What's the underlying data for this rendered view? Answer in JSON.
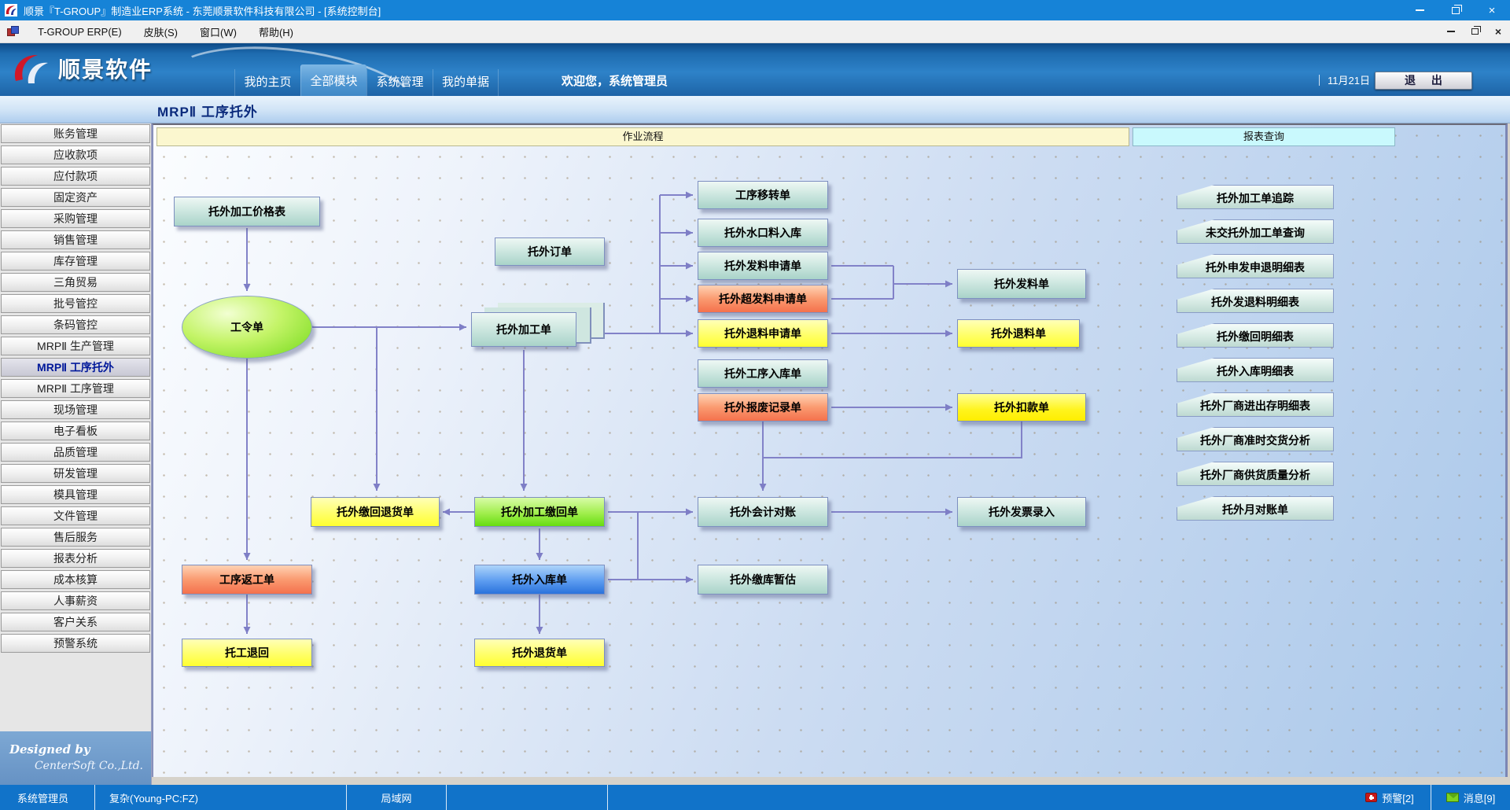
{
  "window": {
    "title": "顺景『T-GROUP』制造业ERP系统 - 东莞顺景软件科技有限公司 - [系统控制台]",
    "close_glyph": "×"
  },
  "menubar": {
    "items": [
      "T-GROUP ERP(E)",
      "皮肤(S)",
      "窗口(W)",
      "帮助(H)"
    ]
  },
  "header": {
    "logo_text": "顺景软件",
    "tabs": [
      {
        "label": "我的主页",
        "active": false
      },
      {
        "label": "全部模块",
        "active": true
      },
      {
        "label": "系统管理",
        "active": false
      },
      {
        "label": "我的单据",
        "active": false
      }
    ],
    "welcome": "欢迎您，系统管理员",
    "date": "11月21日",
    "logout_label": "退 出"
  },
  "page": {
    "title": "MRPⅡ 工序托外"
  },
  "sidebar": {
    "items": [
      {
        "label": "账务管理",
        "selected": false
      },
      {
        "label": "应收款项",
        "selected": false
      },
      {
        "label": "应付款项",
        "selected": false
      },
      {
        "label": "固定资产",
        "selected": false
      },
      {
        "label": "采购管理",
        "selected": false
      },
      {
        "label": "销售管理",
        "selected": false
      },
      {
        "label": "库存管理",
        "selected": false
      },
      {
        "label": "三角贸易",
        "selected": false
      },
      {
        "label": "批号管控",
        "selected": false
      },
      {
        "label": "条码管控",
        "selected": false
      },
      {
        "label": "MRPⅡ 生产管理",
        "selected": false
      },
      {
        "label": "MRPⅡ 工序托外",
        "selected": true
      },
      {
        "label": "MRPⅡ 工序管理",
        "selected": false
      },
      {
        "label": "现场管理",
        "selected": false
      },
      {
        "label": "电子看板",
        "selected": false
      },
      {
        "label": "品质管理",
        "selected": false
      },
      {
        "label": "研发管理",
        "selected": false
      },
      {
        "label": "模具管理",
        "selected": false
      },
      {
        "label": "文件管理",
        "selected": false
      },
      {
        "label": "售后服务",
        "selected": false
      },
      {
        "label": "报表分析",
        "selected": false
      },
      {
        "label": "成本核算",
        "selected": false
      },
      {
        "label": "人事薪资",
        "selected": false
      },
      {
        "label": "客户关系",
        "selected": false
      },
      {
        "label": "预警系统",
        "selected": false
      }
    ],
    "footer_line1": "Designed by",
    "footer_line2": "CenterSoft Co.,Ltd."
  },
  "flow": {
    "section_process": "作业流程",
    "section_reports": "报表查询",
    "nodes": [
      {
        "id": "jiagebiao",
        "label": "托外加工价格表",
        "color": "teal"
      },
      {
        "id": "gonglingdan",
        "label": "工令单",
        "color": "green"
      },
      {
        "id": "dingdan",
        "label": "托外订单",
        "color": "teal"
      },
      {
        "id": "jiagongdan",
        "label": "托外加工单",
        "color": "teal"
      },
      {
        "id": "yizhuandan",
        "label": "工序移转单",
        "color": "teal"
      },
      {
        "id": "shuikou",
        "label": "托外水口料入库",
        "color": "teal"
      },
      {
        "id": "faliao_sq",
        "label": "托外发料申请单",
        "color": "teal"
      },
      {
        "id": "chaofa_sq",
        "label": "托外超发料申请单",
        "color": "salmon"
      },
      {
        "id": "tuiliao_sq",
        "label": "托外退料申请单",
        "color": "yellow"
      },
      {
        "id": "gx_rukudan",
        "label": "托外工序入库单",
        "color": "teal"
      },
      {
        "id": "baofei",
        "label": "托外报废记录单",
        "color": "salmon"
      },
      {
        "id": "faliaodan",
        "label": "托外发料单",
        "color": "teal"
      },
      {
        "id": "tuiliaodan",
        "label": "托外退料单",
        "color": "yellow"
      },
      {
        "id": "koukuandan",
        "label": "托外扣款单",
        "color": "yellow-bright"
      },
      {
        "id": "jiaohui_tuihuo",
        "label": "托外缴回退货单",
        "color": "yellow"
      },
      {
        "id": "jiagong_jiaohui",
        "label": "托外加工缴回单",
        "color": "green"
      },
      {
        "id": "kuaiji",
        "label": "托外会计对账",
        "color": "teal"
      },
      {
        "id": "fapiao",
        "label": "托外发票录入",
        "color": "teal"
      },
      {
        "id": "fangong",
        "label": "工序返工单",
        "color": "salmon"
      },
      {
        "id": "rukudan",
        "label": "托外入库单",
        "color": "blue"
      },
      {
        "id": "jiaoku_zangu",
        "label": "托外缴库暂估",
        "color": "teal"
      },
      {
        "id": "tuogong_tuihui",
        "label": "托工退回",
        "color": "yellow"
      },
      {
        "id": "tuihuodan",
        "label": "托外退货单",
        "color": "yellow"
      }
    ],
    "reports": [
      "托外加工单追踪",
      "未交托外加工单查询",
      "托外申发申退明细表",
      "托外发退料明细表",
      "托外缴回明细表",
      "托外入库明细表",
      "托外厂商进出存明细表",
      "托外厂商准时交货分析",
      "托外厂商供货质量分析",
      "托外月对账单"
    ]
  },
  "statusbar": {
    "user": "系统管理员",
    "client": "复杂(Young-PC:FZ)",
    "network": "局域网",
    "alert_label": "预警[2]",
    "message_label": "消息[9]"
  },
  "colors": {
    "titlebar": "#1683d7",
    "header_blue": "#2e82c8",
    "active_tab": "#5fa0d8",
    "statusbar": "#1173c9",
    "bar_yellow": "#fbf7cf",
    "bar_cyan": "#c9f9fd",
    "node_teal": "#a9d3c9",
    "node_yellow": "#ffff30",
    "node_salmon": "#f4714d",
    "node_green": "#7adc20",
    "node_blue": "#2a72dc",
    "arrow": "#8282c8"
  }
}
